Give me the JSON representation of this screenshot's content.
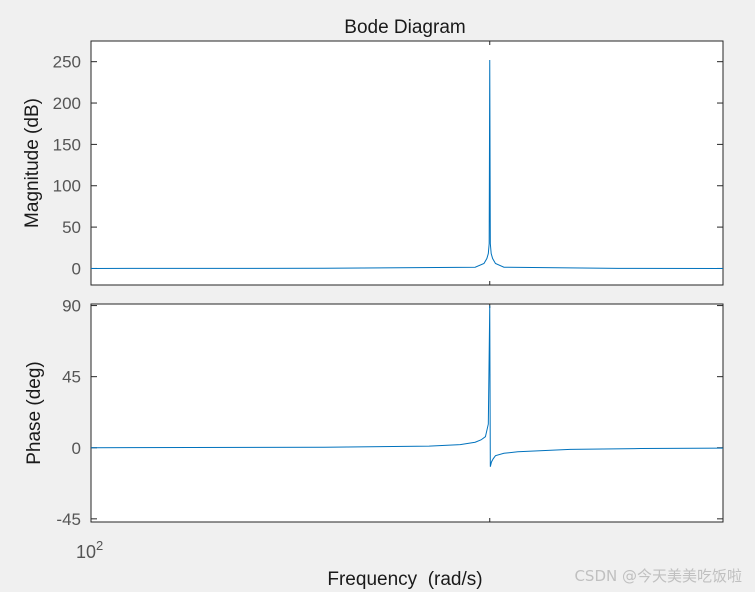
{
  "chart_data": {
    "type": "line",
    "title": "Bode Diagram",
    "xlabel": "Frequency  (rad/s)",
    "x_scale": "log",
    "xlim": [
      100,
      300
    ],
    "x_tick_label": {
      "base": "10",
      "exponent": "2"
    },
    "line_color": "#0072bd",
    "grid": false,
    "subplots": [
      {
        "name": "magnitude",
        "ylabel": "Magnitude (dB)",
        "ylim": [
          -20,
          275
        ],
        "yticks": [
          0,
          50,
          100,
          150,
          200,
          250
        ],
        "yticklabels": [
          "0",
          "50",
          "100",
          "150",
          "200",
          "250"
        ],
        "series": [
          {
            "x": [
              100,
              150,
              195,
              198,
              199,
              199.5,
              199.8,
              200,
              200.2,
              200.5,
              201,
              202,
              205,
              250,
              300
            ],
            "y": [
              0,
              0.2,
              1.5,
              6,
              12,
              18,
              30,
              252,
              30,
              18,
              12,
              6,
              1.5,
              0.1,
              0
            ]
          }
        ]
      },
      {
        "name": "phase",
        "ylabel": "Phase (deg)",
        "ylim": [
          -47,
          91
        ],
        "yticks": [
          -45,
          0,
          45,
          90
        ],
        "yticklabels": [
          "-45",
          "0",
          "45",
          "90"
        ],
        "series": [
          {
            "x": [
              100,
              150,
              180,
              190,
              195,
              197,
              198.5,
              199.5,
              200,
              200.2,
              200.6,
              201.2,
              202,
              205,
              210,
              230,
              260,
              300
            ],
            "y": [
              0,
              0.3,
              1,
              2,
              3.5,
              5,
              7,
              15,
              90,
              -12,
              -9,
              -7,
              -5,
              -3.5,
              -2.5,
              -1,
              -0.5,
              -0.2
            ]
          }
        ]
      }
    ]
  },
  "watermark": "CSDN @今天美美吃饭啦"
}
